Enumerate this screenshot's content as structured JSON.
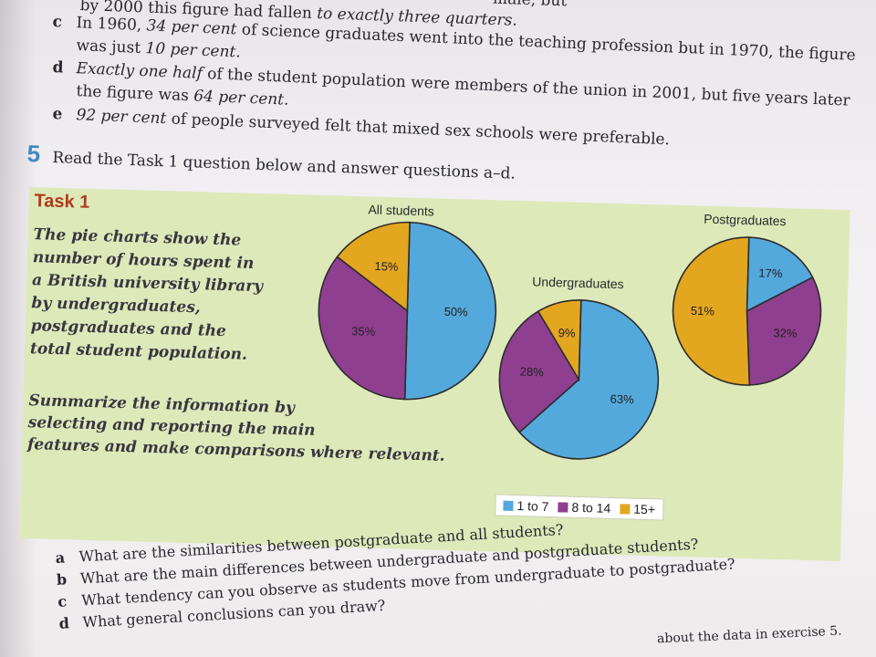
{
  "top_fragment": {
    "text_left": "by 2000 this figure had fallen ",
    "text_italic": "to exactly three quarters.",
    "text_right": "male, but"
  },
  "items": [
    {
      "letter": "c",
      "line1_a": "In 1960, ",
      "line1_it": "34 per cent",
      "line1_b": " of science graduates went into the teaching profession but in 1970, the figure",
      "line2_a": "was just ",
      "line2_it": "10 per cent.",
      "line2_b": ""
    },
    {
      "letter": "d",
      "line1_a": "",
      "line1_it": "Exactly one half",
      "line1_b": " of the student population were members of the union in 2001, but five years later",
      "line2_a": "the figure was ",
      "line2_it": "64 per cent.",
      "line2_b": ""
    },
    {
      "letter": "e",
      "line1_a": "",
      "line1_it": "92 per cent",
      "line1_b": " of people surveyed felt that mixed sex schools were preferable.",
      "line2_a": "",
      "line2_it": "",
      "line2_b": ""
    }
  ],
  "question5": {
    "number": "5",
    "text": "Read the Task 1 question below and answer questions a–d."
  },
  "task": {
    "title": "Task 1",
    "description": "The pie charts show the\nnumber of hours spent in\na British university library\nby undergraduates,\npostgraduates and the\ntotal student population.",
    "instruction": "Summarize the information by\nselecting and reporting the main\nfeatures and make comparisons where relevant."
  },
  "colors": {
    "one_to_seven": "#54a9dc",
    "eight_to_fourteen": "#8f3f8f",
    "fifteen_plus": "#e3a61f"
  },
  "chart_data": [
    {
      "type": "pie",
      "title": "All students",
      "labels": [
        "1 to 7",
        "8 to 14",
        "15+"
      ],
      "values": [
        50,
        35,
        15
      ],
      "value_labels": [
        "50%",
        "35%",
        "15%"
      ]
    },
    {
      "type": "pie",
      "title": "Undergraduates",
      "labels": [
        "1 to 7",
        "8 to 14",
        "15+"
      ],
      "values": [
        63,
        28,
        9
      ],
      "value_labels": [
        "63%",
        "28%",
        "9%"
      ]
    },
    {
      "type": "pie",
      "title": "Postgraduates",
      "labels": [
        "1 to 7",
        "8 to 14",
        "15+"
      ],
      "values": [
        17,
        32,
        51
      ],
      "value_labels": [
        "17%",
        "32%",
        "51%"
      ]
    }
  ],
  "legend": [
    {
      "label": "1 to 7",
      "color": "#54a9dc"
    },
    {
      "label": "8 to 14",
      "color": "#8f3f8f"
    },
    {
      "label": "15+",
      "color": "#e3a61f"
    }
  ],
  "questions": [
    {
      "letter": "a",
      "text": "What are the similarities between postgraduate and all students?"
    },
    {
      "letter": "b",
      "text": "What are the main differences between undergraduate and postgraduate students?"
    },
    {
      "letter": "c",
      "text": "What tendency can you observe as students move from undergraduate to postgraduate?"
    },
    {
      "letter": "d",
      "text": "What general conclusions can you draw?"
    }
  ],
  "bottom_tail": "about the data in exercise 5."
}
